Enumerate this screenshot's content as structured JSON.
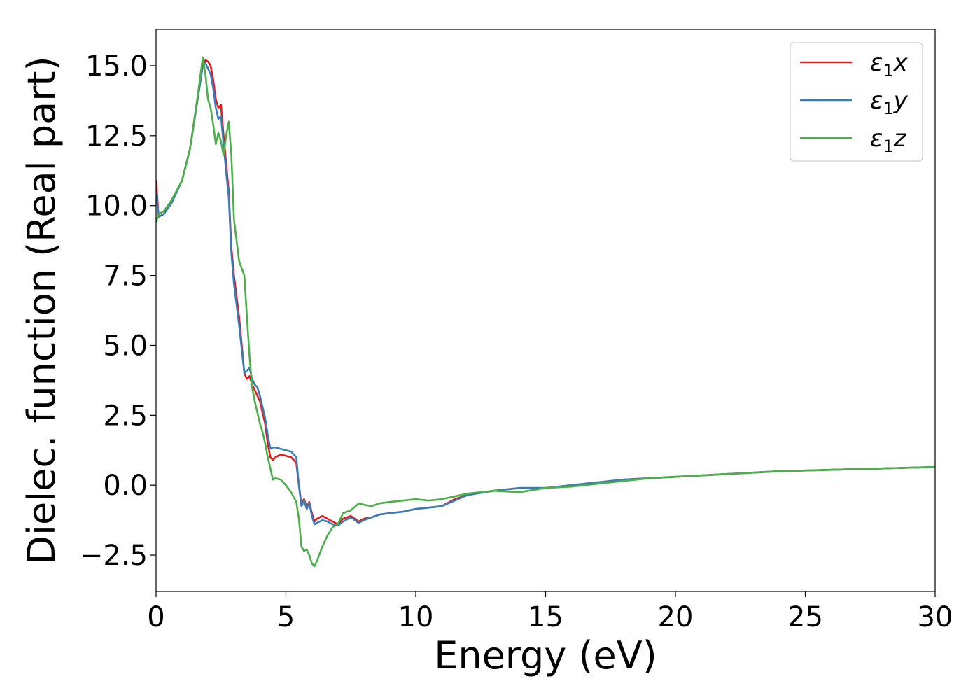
{
  "chart_data": {
    "type": "line",
    "title": "",
    "xlabel": "Energy (eV)",
    "ylabel": "Dielec. function (Real part)",
    "xlim": [
      0,
      30
    ],
    "ylim": [
      -3.8,
      16.3
    ],
    "x_ticks": [
      0,
      5,
      10,
      15,
      20,
      25,
      30
    ],
    "x_tick_labels": [
      "0",
      "5",
      "10",
      "15",
      "20",
      "25",
      "30"
    ],
    "y_ticks": [
      -2.5,
      0.0,
      2.5,
      5.0,
      7.5,
      10.0,
      12.5,
      15.0
    ],
    "y_tick_labels": [
      "−2.5",
      "0.0",
      "2.5",
      "5.0",
      "7.5",
      "10.0",
      "12.5",
      "15.0"
    ],
    "grid": false,
    "legend_position": "top-right",
    "series": [
      {
        "name": "ε₁x",
        "legend_symbol": "ε",
        "legend_sub": "1",
        "legend_suffix": "x",
        "color": "#e41a1c",
        "x": [
          0,
          0.1,
          0.3,
          0.6,
          1.0,
          1.3,
          1.6,
          1.8,
          1.9,
          2.0,
          2.1,
          2.2,
          2.3,
          2.4,
          2.5,
          2.6,
          2.7,
          2.8,
          2.9,
          3.0,
          3.2,
          3.4,
          3.5,
          3.6,
          3.7,
          3.8,
          3.9,
          4.0,
          4.1,
          4.2,
          4.3,
          4.4,
          4.5,
          4.6,
          4.8,
          5.0,
          5.2,
          5.4,
          5.5,
          5.6,
          5.7,
          5.8,
          5.9,
          6.0,
          6.1,
          6.2,
          6.4,
          6.6,
          6.8,
          7.0,
          7.2,
          7.5,
          7.8,
          8.0,
          8.3,
          8.6,
          9.0,
          9.5,
          10.0,
          10.5,
          11.0,
          11.5,
          12.0,
          13.0,
          14.0,
          15.0,
          16.0,
          17.0,
          18.0,
          19.0,
          20.0,
          22.0,
          24.0,
          26.0,
          28.0,
          30.0
        ],
        "y": [
          10.9,
          9.6,
          9.7,
          10.1,
          10.9,
          12.0,
          13.8,
          15.0,
          15.2,
          15.15,
          15.0,
          14.5,
          13.8,
          13.5,
          13.6,
          12.5,
          11.5,
          10.5,
          8.5,
          7.5,
          6.0,
          4.0,
          3.8,
          3.9,
          3.6,
          3.4,
          3.2,
          3.0,
          2.6,
          2.2,
          1.5,
          1.0,
          0.9,
          1.0,
          1.1,
          1.05,
          1.0,
          0.8,
          0.0,
          -0.7,
          -0.5,
          -0.8,
          -0.6,
          -1.0,
          -1.3,
          -1.2,
          -1.1,
          -1.2,
          -1.3,
          -1.4,
          -1.2,
          -1.1,
          -1.3,
          -1.2,
          -1.15,
          -1.05,
          -1.0,
          -0.95,
          -0.85,
          -0.8,
          -0.75,
          -0.5,
          -0.35,
          -0.2,
          -0.1,
          -0.1,
          0.0,
          0.1,
          0.2,
          0.25,
          0.3,
          0.4,
          0.5,
          0.55,
          0.6,
          0.65
        ]
      },
      {
        "name": "ε₁y",
        "legend_symbol": "ε",
        "legend_sub": "1",
        "legend_suffix": "y",
        "color": "#377eb8",
        "x": [
          0,
          0.1,
          0.3,
          0.6,
          1.0,
          1.3,
          1.6,
          1.8,
          1.9,
          2.0,
          2.1,
          2.2,
          2.3,
          2.4,
          2.5,
          2.6,
          2.7,
          2.8,
          2.9,
          3.0,
          3.2,
          3.4,
          3.5,
          3.6,
          3.7,
          3.8,
          3.9,
          4.0,
          4.1,
          4.2,
          4.3,
          4.4,
          4.5,
          4.6,
          4.8,
          5.0,
          5.2,
          5.4,
          5.5,
          5.6,
          5.7,
          5.8,
          5.9,
          6.0,
          6.1,
          6.2,
          6.4,
          6.6,
          6.8,
          7.0,
          7.2,
          7.5,
          7.8,
          8.0,
          8.3,
          8.6,
          9.0,
          9.5,
          10.0,
          10.5,
          11.0,
          11.5,
          12.0,
          13.0,
          14.0,
          15.0,
          16.0,
          17.0,
          18.0,
          19.0,
          20.0,
          22.0,
          24.0,
          26.0,
          28.0,
          30.0
        ],
        "y": [
          10.5,
          9.6,
          9.7,
          10.1,
          10.9,
          12.0,
          13.8,
          15.0,
          15.1,
          14.9,
          14.7,
          14.2,
          13.5,
          13.1,
          13.2,
          12.2,
          11.2,
          10.3,
          8.3,
          7.2,
          5.7,
          4.0,
          4.1,
          4.2,
          3.8,
          3.6,
          3.5,
          3.2,
          2.8,
          2.4,
          1.8,
          1.3,
          1.35,
          1.35,
          1.3,
          1.25,
          1.2,
          1.0,
          0.0,
          -0.75,
          -0.55,
          -0.85,
          -0.65,
          -1.1,
          -1.4,
          -1.35,
          -1.25,
          -1.3,
          -1.4,
          -1.45,
          -1.3,
          -1.15,
          -1.35,
          -1.25,
          -1.15,
          -1.05,
          -1.0,
          -0.95,
          -0.85,
          -0.8,
          -0.75,
          -0.55,
          -0.35,
          -0.2,
          -0.1,
          -0.1,
          0.0,
          0.1,
          0.2,
          0.25,
          0.3,
          0.4,
          0.5,
          0.55,
          0.6,
          0.65
        ]
      },
      {
        "name": "ε₁z",
        "legend_symbol": "ε",
        "legend_sub": "1",
        "legend_suffix": "z",
        "color": "#4daf4a",
        "x": [
          0,
          0.1,
          0.3,
          0.6,
          1.0,
          1.3,
          1.6,
          1.8,
          1.9,
          2.0,
          2.1,
          2.2,
          2.3,
          2.4,
          2.5,
          2.6,
          2.7,
          2.8,
          2.9,
          3.0,
          3.2,
          3.4,
          3.5,
          3.6,
          3.7,
          3.8,
          3.9,
          4.0,
          4.1,
          4.2,
          4.3,
          4.4,
          4.5,
          4.6,
          4.8,
          5.0,
          5.2,
          5.4,
          5.5,
          5.6,
          5.7,
          5.8,
          5.9,
          6.0,
          6.1,
          6.2,
          6.4,
          6.6,
          6.8,
          7.0,
          7.2,
          7.5,
          7.8,
          8.0,
          8.3,
          8.6,
          9.0,
          9.5,
          10.0,
          10.5,
          11.0,
          11.5,
          12.0,
          13.0,
          14.0,
          15.0,
          16.0,
          17.0,
          18.0,
          19.0,
          20.0,
          22.0,
          24.0,
          26.0,
          28.0,
          30.0
        ],
        "y": [
          9.4,
          9.7,
          9.8,
          10.2,
          10.9,
          12.0,
          13.9,
          15.3,
          14.7,
          13.8,
          13.5,
          12.9,
          12.2,
          12.6,
          12.3,
          11.8,
          12.5,
          13.0,
          11.8,
          9.5,
          8.0,
          7.5,
          6.0,
          4.6,
          3.5,
          3.0,
          2.6,
          2.2,
          1.9,
          1.5,
          1.0,
          0.6,
          0.2,
          0.25,
          0.2,
          0.0,
          -0.25,
          -0.6,
          -1.2,
          -2.2,
          -2.35,
          -2.3,
          -2.5,
          -2.8,
          -2.9,
          -2.7,
          -2.2,
          -1.8,
          -1.5,
          -1.4,
          -1.0,
          -0.9,
          -0.65,
          -0.7,
          -0.75,
          -0.65,
          -0.6,
          -0.55,
          -0.5,
          -0.55,
          -0.5,
          -0.4,
          -0.3,
          -0.2,
          -0.25,
          -0.1,
          -0.05,
          0.05,
          0.15,
          0.25,
          0.3,
          0.4,
          0.5,
          0.55,
          0.6,
          0.65
        ]
      }
    ]
  }
}
